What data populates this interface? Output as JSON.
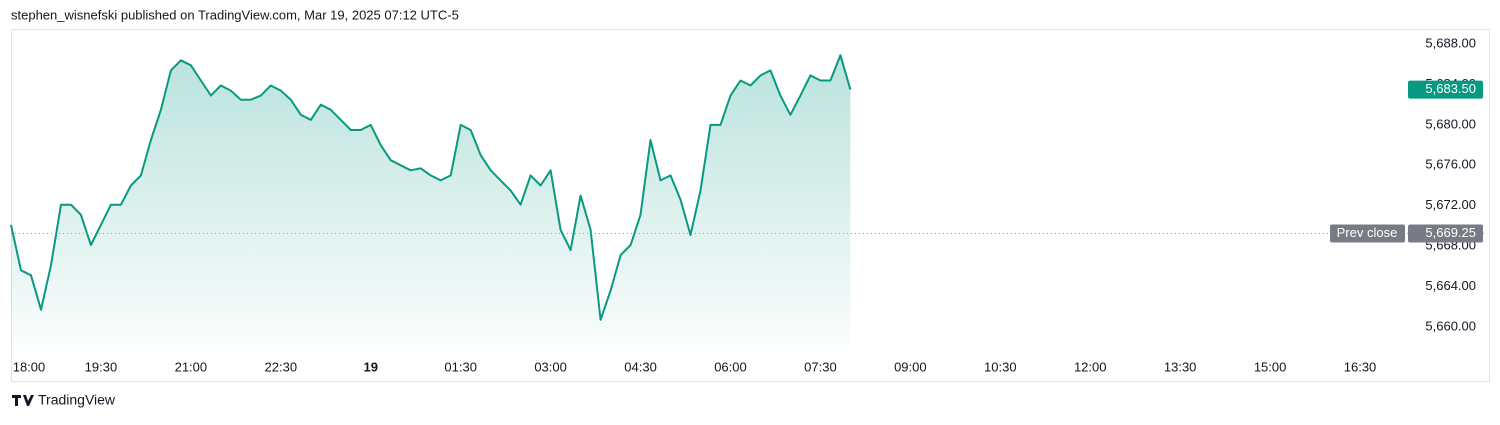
{
  "header": "stephen_wisnefski published on TradingView.com, Mar 19, 2025 07:12 UTC-5",
  "footer": "TradingView",
  "chart_data": {
    "type": "area",
    "color": "#089981",
    "x": [
      "18:00",
      "18:10",
      "18:20",
      "18:30",
      "18:40",
      "18:50",
      "19:00",
      "19:10",
      "19:20",
      "19:30",
      "19:40",
      "19:50",
      "20:00",
      "20:10",
      "20:20",
      "20:30",
      "20:40",
      "20:50",
      "21:00",
      "21:10",
      "21:20",
      "21:30",
      "21:40",
      "21:50",
      "22:00",
      "22:10",
      "22:20",
      "22:30",
      "22:40",
      "22:50",
      "23:00",
      "23:10",
      "23:20",
      "23:30",
      "23:40",
      "23:50",
      "00:00",
      "00:10",
      "00:20",
      "00:30",
      "00:40",
      "00:50",
      "01:00",
      "01:10",
      "01:20",
      "01:30",
      "01:40",
      "01:50",
      "02:00",
      "02:10",
      "02:20",
      "02:30",
      "02:40",
      "02:50",
      "03:00",
      "03:10",
      "03:20",
      "03:30",
      "03:40",
      "03:50",
      "04:00",
      "04:10",
      "04:20",
      "04:30",
      "04:40",
      "04:50",
      "05:00",
      "05:10",
      "05:20",
      "05:30",
      "05:40",
      "05:50",
      "06:00",
      "06:10",
      "06:20",
      "06:30",
      "06:40",
      "06:50",
      "07:00",
      "07:10",
      "07:20",
      "07:30",
      "07:40",
      "07:50",
      "08:00"
    ],
    "values": [
      5670.1,
      5665.6,
      5665.1,
      5661.7,
      5666.1,
      5672.1,
      5672.1,
      5671.1,
      5668.1,
      5670.1,
      5672.1,
      5672.1,
      5674.0,
      5675.0,
      5678.5,
      5681.5,
      5685.4,
      5686.4,
      5685.9,
      5684.4,
      5682.9,
      5683.9,
      5683.4,
      5682.5,
      5682.5,
      5682.9,
      5683.9,
      5683.4,
      5682.5,
      5681.0,
      5680.5,
      5682.0,
      5681.5,
      5680.5,
      5679.5,
      5679.5,
      5680.0,
      5678.0,
      5676.5,
      5676.0,
      5675.5,
      5675.7,
      5675.0,
      5674.5,
      5675.0,
      5680.0,
      5679.5,
      5677.0,
      5675.5,
      5674.5,
      5673.5,
      5672.1,
      5675.0,
      5674.0,
      5675.5,
      5669.6,
      5667.6,
      5673.0,
      5669.6,
      5660.7,
      5663.6,
      5667.1,
      5668.1,
      5671.1,
      5678.5,
      5674.5,
      5675.0,
      5672.6,
      5669.1,
      5673.5,
      5680.0,
      5680.0,
      5682.9,
      5684.4,
      5683.9,
      5684.9,
      5685.4,
      5682.9,
      5681.0,
      5682.9,
      5684.9,
      5684.4,
      5684.4,
      5686.9,
      5683.5
    ],
    "xlim": [
      "18:00",
      "17:15"
    ],
    "xticks": [
      "18:00",
      "19:30",
      "21:00",
      "22:30",
      {
        "value": "00:00",
        "label": "19"
      },
      "01:30",
      "03:00",
      "04:30",
      "06:00",
      "07:30",
      "09:00",
      "10:30",
      "12:00",
      "13:30",
      "15:00",
      "16:30"
    ],
    "ylim": [
      5658.2,
      5689.4
    ],
    "yticks": [
      {
        "value": 5660,
        "label": "5,660.00"
      },
      {
        "value": 5664,
        "label": "5,664.00"
      },
      {
        "value": 5668,
        "label": "5,668.00"
      },
      {
        "value": 5672,
        "label": "5,672.00"
      },
      {
        "value": 5676,
        "label": "5,676.00"
      },
      {
        "value": 5680,
        "label": "5,680.00"
      },
      {
        "value": 5684,
        "label": "5,684.00"
      },
      {
        "value": 5688,
        "label": "5,688.00"
      }
    ],
    "last_price": {
      "value": 5683.5,
      "label": "5,683.50"
    },
    "prev_close": {
      "value": 5669.25,
      "label": "5,669.25"
    },
    "prev_close_text": "Prev close",
    "grid": false
  }
}
